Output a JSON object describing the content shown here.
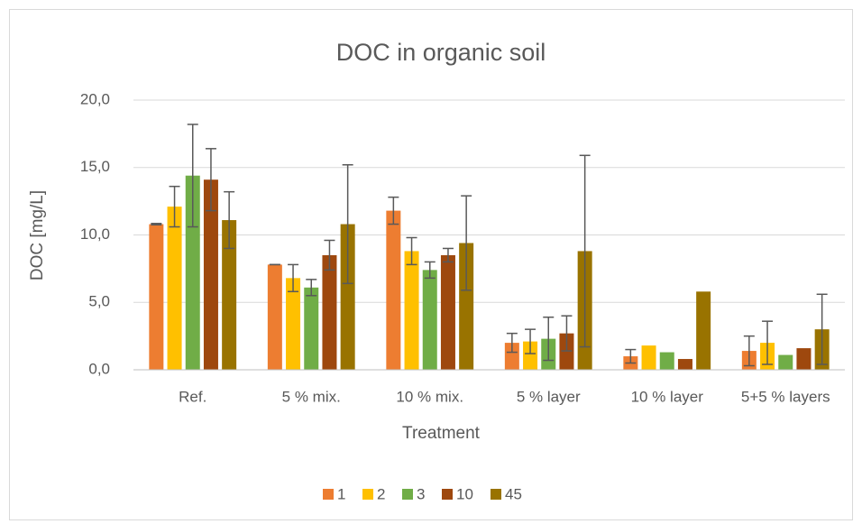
{
  "chart_data": {
    "type": "bar",
    "title": "DOC in organic soil",
    "x_label": "Treatment",
    "y_label": "DOC [mg/L]",
    "categories": [
      "Ref.",
      "5 % mix.",
      "10 % mix.",
      "5 % layer",
      "10 % layer",
      "5+5 % layers"
    ],
    "series": [
      {
        "name": "1",
        "color": "#ed7d31",
        "values": [
          10.8,
          7.8,
          11.8,
          2.0,
          1.0,
          1.4
        ],
        "errors": [
          0.05,
          0.0,
          1.0,
          0.7,
          0.5,
          1.1
        ]
      },
      {
        "name": "2",
        "color": "#ffc000",
        "values": [
          12.1,
          6.8,
          8.8,
          2.1,
          1.8,
          2.0
        ],
        "errors": [
          1.5,
          1.0,
          1.0,
          0.9,
          null,
          1.6
        ]
      },
      {
        "name": "3",
        "color": "#70ad47",
        "values": [
          14.4,
          6.1,
          7.4,
          2.3,
          1.3,
          1.1
        ],
        "errors": [
          3.8,
          0.6,
          0.6,
          1.6,
          null,
          null
        ]
      },
      {
        "name": "10",
        "color": "#9e480e",
        "values": [
          14.1,
          8.5,
          8.5,
          2.7,
          0.8,
          1.6
        ],
        "errors": [
          2.3,
          1.1,
          0.5,
          1.3,
          null,
          null
        ]
      },
      {
        "name": "45",
        "color": "#997300",
        "values": [
          11.1,
          10.8,
          9.4,
          8.8,
          5.8,
          3.0
        ],
        "errors": [
          2.1,
          4.4,
          3.5,
          7.1,
          null,
          2.6
        ]
      }
    ],
    "ylim": [
      0,
      20
    ],
    "yticks": [
      {
        "value": 0,
        "label": "0,0"
      },
      {
        "value": 5,
        "label": "5,0"
      },
      {
        "value": 10,
        "label": "10,0"
      },
      {
        "value": 15,
        "label": "15,0"
      },
      {
        "value": 20,
        "label": "20,0"
      }
    ],
    "grid": true,
    "legend": "bottom"
  }
}
